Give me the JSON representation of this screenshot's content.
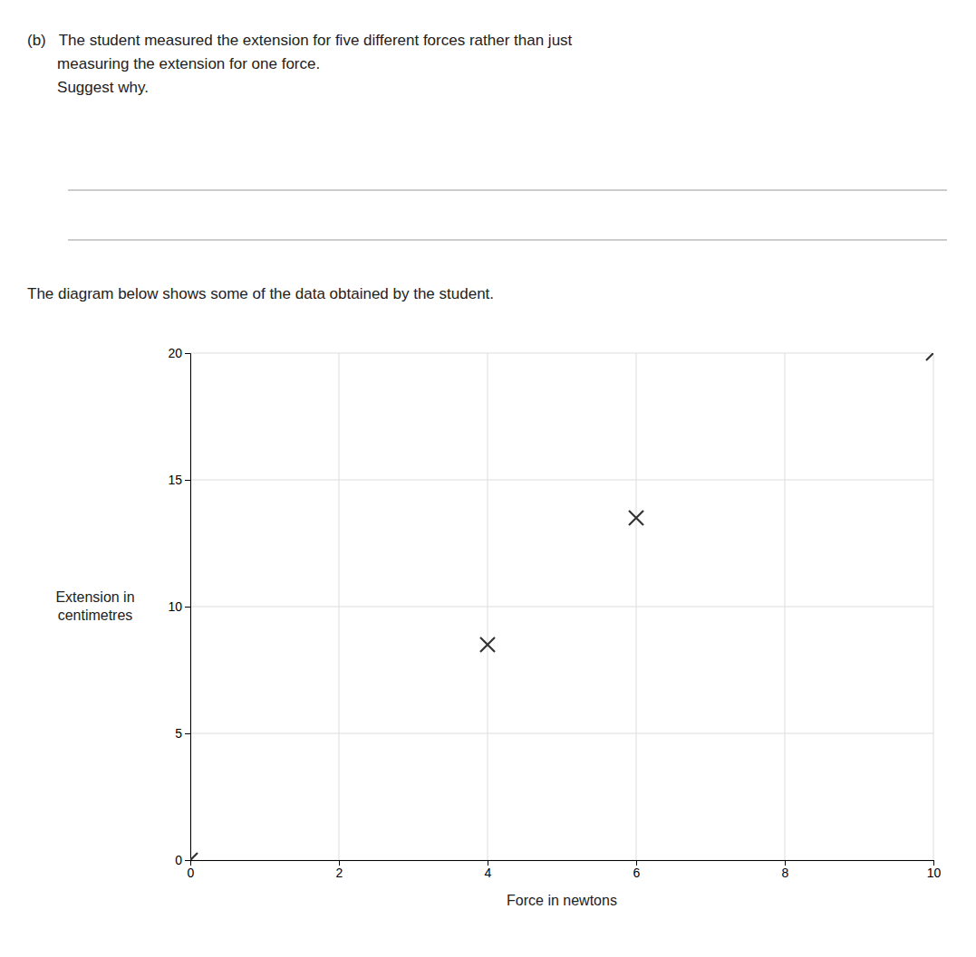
{
  "chart_data": {
    "type": "scatter",
    "title": "(b)   The student measured the extension for five different forces rather than just\n       measuring the extension for one force.\n\n       Suggest why.",
    "subtitle": "The diagram below shows some of the data obtained by the student.",
    "xlabel": "Force in newtons",
    "ylabel": "Extension in\ncentimetres",
    "x": [
      0,
      4,
      6,
      10
    ],
    "values": [
      0,
      8.5,
      13.5,
      20
    ],
    "xlim": [
      0,
      10
    ],
    "ylim": [
      0,
      20
    ],
    "xticks": [
      0,
      2,
      4,
      6,
      8,
      10
    ],
    "yticks": [
      0,
      5,
      10,
      15,
      20
    ],
    "grid": true,
    "marker": "x",
    "color": "#333333"
  }
}
